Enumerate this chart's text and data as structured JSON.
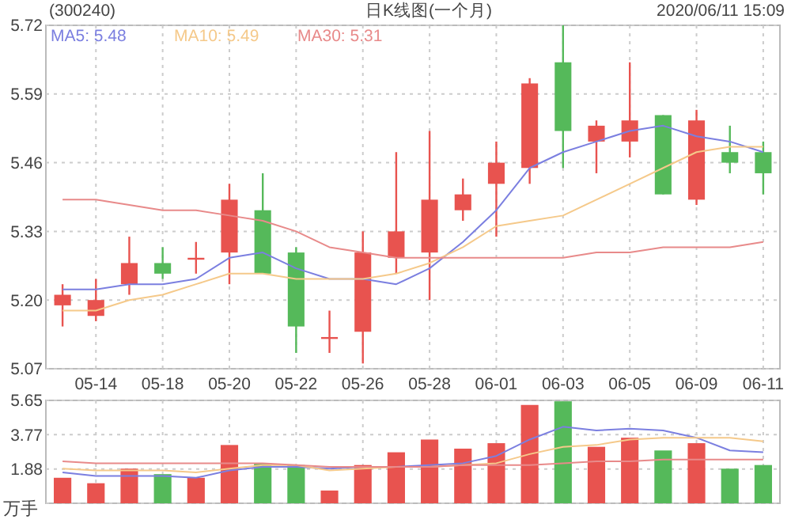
{
  "chart_data": [
    {
      "type": "candlestick",
      "title": "日K线图(一个月)",
      "annotations": [
        "(300240)",
        "2020/06/11 15:09"
      ],
      "categories": [
        null,
        "05-14",
        null,
        "05-18",
        null,
        "05-20",
        null,
        "05-22",
        null,
        "05-26",
        null,
        "05-28",
        null,
        "06-01",
        null,
        "06-03",
        null,
        "06-05",
        null,
        "06-09",
        null,
        "06-11"
      ],
      "ohlc": [
        [
          5.19,
          5.23,
          5.15,
          5.21
        ],
        [
          5.17,
          5.24,
          5.16,
          5.2
        ],
        [
          5.23,
          5.32,
          5.21,
          5.27
        ],
        [
          5.27,
          5.3,
          5.24,
          5.25
        ],
        [
          5.28,
          5.31,
          5.25,
          5.28
        ],
        [
          5.29,
          5.42,
          5.23,
          5.39
        ],
        [
          5.37,
          5.44,
          5.25,
          5.25
        ],
        [
          5.29,
          5.3,
          5.1,
          5.15
        ],
        [
          5.13,
          5.18,
          5.1,
          5.13
        ],
        [
          5.14,
          5.33,
          5.08,
          5.29
        ],
        [
          5.28,
          5.48,
          5.25,
          5.33
        ],
        [
          5.29,
          5.52,
          5.2,
          5.39
        ],
        [
          5.37,
          5.43,
          5.35,
          5.4
        ],
        [
          5.42,
          5.5,
          5.32,
          5.46
        ],
        [
          5.45,
          5.62,
          5.42,
          5.61
        ],
        [
          5.65,
          5.72,
          5.45,
          5.52
        ],
        [
          5.5,
          5.54,
          5.44,
          5.53
        ],
        [
          5.5,
          5.65,
          5.47,
          5.54
        ],
        [
          5.55,
          5.55,
          5.4,
          5.4
        ],
        [
          5.39,
          5.56,
          5.38,
          5.54
        ],
        [
          5.48,
          5.53,
          5.44,
          5.46
        ],
        [
          5.48,
          5.5,
          5.4,
          5.44
        ]
      ],
      "colors": [
        "#e8534f",
        "#e8534f",
        "#e8534f",
        "#55b95a",
        "#e8534f",
        "#e8534f",
        "#55b95a",
        "#55b95a",
        "#e8534f",
        "#e8534f",
        "#e8534f",
        "#e8534f",
        "#e8534f",
        "#e8534f",
        "#e8534f",
        "#55b95a",
        "#e8534f",
        "#e8534f",
        "#55b95a",
        "#e8534f",
        "#55b95a",
        "#55b95a"
      ],
      "series": [
        {
          "type": "line",
          "name": "MA5: 5.48",
          "color": "#7b7fe0",
          "values": [
            5.22,
            5.22,
            5.23,
            5.23,
            5.24,
            5.28,
            5.29,
            5.26,
            5.24,
            5.24,
            5.23,
            5.26,
            5.31,
            5.37,
            5.45,
            5.48,
            5.5,
            5.52,
            5.53,
            5.51,
            5.5,
            5.48
          ]
        },
        {
          "type": "line",
          "name": "MA10: 5.49",
          "color": "#f5c98a",
          "values": [
            5.18,
            5.18,
            5.2,
            5.21,
            5.23,
            5.25,
            5.25,
            5.24,
            5.24,
            5.24,
            5.25,
            5.27,
            5.3,
            5.34,
            5.35,
            5.36,
            5.39,
            5.42,
            5.45,
            5.48,
            5.49,
            5.49
          ]
        },
        {
          "type": "line",
          "name": "MA30: 5.31",
          "color": "#e88a8a",
          "values": [
            5.39,
            5.39,
            5.38,
            5.37,
            5.37,
            5.36,
            5.35,
            5.33,
            5.3,
            5.29,
            5.28,
            5.28,
            5.28,
            5.28,
            5.28,
            5.28,
            5.29,
            5.29,
            5.3,
            5.3,
            5.3,
            5.31
          ]
        }
      ],
      "ylim": [
        5.07,
        5.72
      ],
      "yticks": [
        5.07,
        {
          "value": 5.2,
          "label": "5.20"
        },
        5.33,
        5.46,
        5.59,
        5.72
      ],
      "grid": true,
      "legend": "top left"
    },
    {
      "type": "bar",
      "ylabel": "万手",
      "categories": [
        null,
        null,
        null,
        null,
        null,
        null,
        null,
        null,
        null,
        null,
        null,
        null,
        null,
        null,
        null,
        null,
        null,
        null,
        null,
        null,
        null,
        null
      ],
      "values": [
        1.4,
        1.1,
        1.9,
        1.6,
        1.4,
        3.2,
        2.2,
        2.1,
        0.7,
        2.1,
        2.8,
        3.5,
        3.0,
        3.3,
        5.4,
        5.6,
        3.1,
        3.6,
        2.9,
        3.3,
        1.9,
        2.1
      ],
      "colors": [
        "#e8534f",
        "#e8534f",
        "#e8534f",
        "#55b95a",
        "#e8534f",
        "#e8534f",
        "#55b95a",
        "#55b95a",
        "#e8534f",
        "#e8534f",
        "#e8534f",
        "#e8534f",
        "#e8534f",
        "#e8534f",
        "#e8534f",
        "#55b95a",
        "#e8534f",
        "#e8534f",
        "#55b95a",
        "#e8534f",
        "#55b95a",
        "#55b95a"
      ],
      "series": [
        {
          "type": "line",
          "color": "#7b7fe0",
          "values": [
            1.7,
            1.5,
            1.5,
            1.5,
            1.4,
            1.8,
            2.0,
            2.0,
            1.9,
            2.0,
            2.0,
            2.1,
            2.2,
            2.6,
            3.5,
            4.2,
            4.0,
            4.1,
            4.0,
            3.6,
            2.9,
            2.8
          ]
        },
        {
          "type": "line",
          "color": "#f5c98a",
          "values": [
            1.9,
            1.8,
            1.8,
            1.8,
            1.7,
            1.9,
            2.1,
            2.1,
            1.8,
            1.9,
            2.0,
            2.0,
            2.1,
            2.2,
            2.7,
            3.1,
            3.2,
            3.5,
            3.6,
            3.6,
            3.6,
            3.4
          ]
        },
        {
          "type": "line",
          "color": "#e88a8a",
          "values": [
            2.3,
            2.2,
            2.2,
            2.2,
            2.2,
            2.2,
            2.2,
            2.1,
            2.0,
            2.0,
            2.0,
            2.0,
            2.1,
            2.1,
            2.1,
            2.2,
            2.3,
            2.3,
            2.4,
            2.4,
            2.4,
            2.4
          ]
        }
      ],
      "ylim": [
        0,
        5.65
      ],
      "yticks": [
        {
          "value": 0,
          "label": null
        },
        {
          "value": 1.88,
          "label": "1.88"
        },
        {
          "value": 3.77,
          "label": "3.77"
        },
        {
          "value": 5.65,
          "label": "5.65"
        }
      ],
      "grid": true,
      "tick_labels": "y"
    }
  ]
}
